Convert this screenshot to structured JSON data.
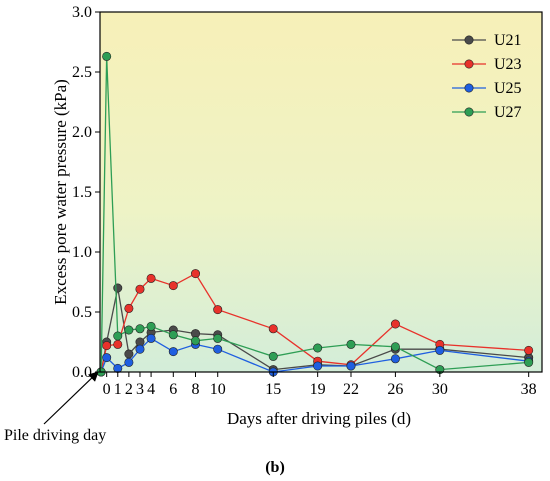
{
  "chart_data": {
    "type": "line",
    "xlabel": "Days after driving piles (d)",
    "ylabel": "Excess pore water pressure (kPa)",
    "xlim": [
      -0.6,
      39.2
    ],
    "ylim": [
      0,
      3.0
    ],
    "x_ticks": [
      0,
      1,
      2,
      3,
      4,
      6,
      8,
      10,
      15,
      19,
      22,
      26,
      30,
      38
    ],
    "y_ticks": [
      0.0,
      0.5,
      1.0,
      1.5,
      2.0,
      2.5,
      3.0
    ],
    "y_tick_labels": [
      "0.0",
      "0.5",
      "1.0",
      "1.5",
      "2.0",
      "2.5",
      "3.0"
    ],
    "grid": false,
    "legend_position": "top-right",
    "background": "yellow-to-green gradient",
    "series": [
      {
        "name": "U21",
        "color": "#4a4a4a",
        "x": [
          -0.5,
          0,
          1,
          2,
          3,
          4,
          6,
          8,
          10,
          15,
          19,
          22,
          26,
          30,
          38
        ],
        "y": [
          0.0,
          0.25,
          0.7,
          0.15,
          0.25,
          0.33,
          0.35,
          0.32,
          0.31,
          0.02,
          0.06,
          0.05,
          0.19,
          0.19,
          0.12
        ]
      },
      {
        "name": "U23",
        "color": "#e8322b",
        "x": [
          -0.5,
          0,
          1,
          2,
          3,
          4,
          6,
          8,
          10,
          15,
          19,
          22,
          26,
          30,
          38
        ],
        "y": [
          0.0,
          0.22,
          0.23,
          0.53,
          0.69,
          0.78,
          0.72,
          0.82,
          0.52,
          0.36,
          0.09,
          0.06,
          0.4,
          0.23,
          0.18
        ]
      },
      {
        "name": "U25",
        "color": "#1f5fe0",
        "x": [
          -0.5,
          0,
          1,
          2,
          3,
          4,
          6,
          8,
          10,
          15,
          19,
          22,
          26,
          30,
          38
        ],
        "y": [
          0.0,
          0.12,
          0.03,
          0.08,
          0.19,
          0.28,
          0.17,
          0.23,
          0.19,
          0.0,
          0.05,
          0.05,
          0.11,
          0.18,
          0.09
        ]
      },
      {
        "name": "U27",
        "color": "#2e9e55",
        "x": [
          -0.5,
          0,
          1,
          2,
          3,
          4,
          6,
          8,
          10,
          15,
          19,
          22,
          26,
          30,
          38
        ],
        "y": [
          0.0,
          2.63,
          0.3,
          0.35,
          0.36,
          0.38,
          0.31,
          0.26,
          0.28,
          0.13,
          0.2,
          0.23,
          0.21,
          0.02,
          0.08
        ]
      }
    ],
    "annotation": {
      "text": "Pile driving day",
      "x": -0.5,
      "y": 0.0
    },
    "sublabel": "(b)"
  }
}
